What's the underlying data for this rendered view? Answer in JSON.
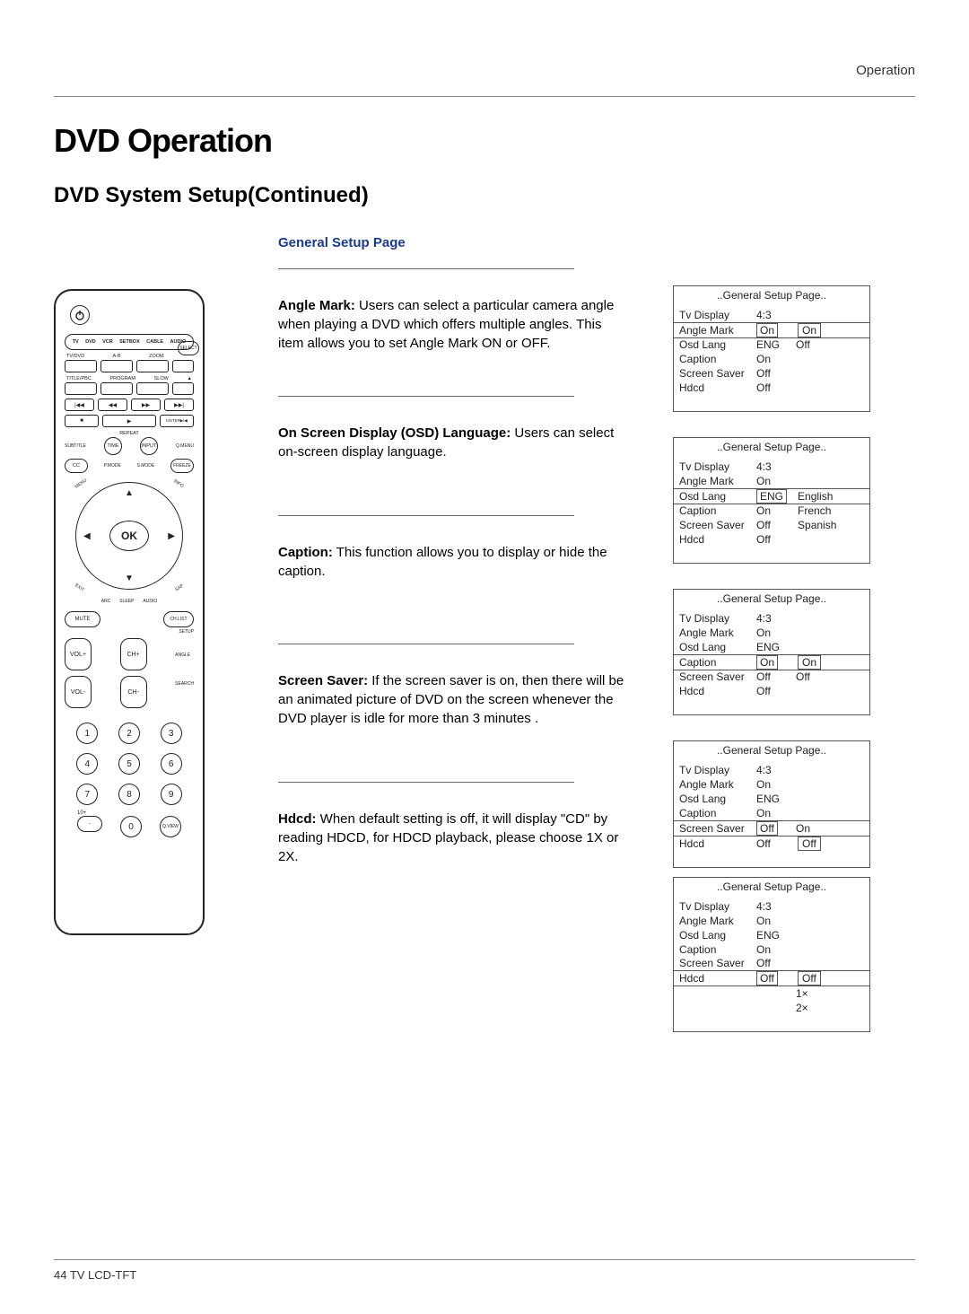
{
  "header": {
    "right": "Operation"
  },
  "title": "DVD Operation",
  "subtitle": "DVD System Setup(Continued)",
  "section_heading": "General Setup Page",
  "footer": "44   TV LCD-TFT",
  "sections": {
    "angle": {
      "label": "Angle Mark:",
      "text": "Users can select a particular camera angle when playing  a DVD which offers  multiple angles.\nThis item allows you to set Angle Mark ON or OFF."
    },
    "osdlang": {
      "label": "On  Screen  Display (OSD)  Language:",
      "text": "Users can select on-screen display  language."
    },
    "caption": {
      "label": "Caption:",
      "text": "This function allows you to display or hide the caption."
    },
    "saver": {
      "label": "Screen Saver:",
      "text": "If the screen saver is  on, then there will be an animated  picture of DVD on the screen whenever the DVD  player is idle for more than 3 minutes  ."
    },
    "hdcd": {
      "label": "Hdcd:",
      "text": "When default setting is off,  it will display \"CD\" by reading HDCD,  for HDCD playback, please choose 1X or  2X."
    }
  },
  "osd_common": {
    "title": "..General Setup Page.."
  },
  "osd1": {
    "rows": [
      [
        "Tv Display",
        "4:3"
      ],
      [
        "Angle Mark",
        "On"
      ],
      [
        "Osd   Lang",
        "ENG"
      ],
      [
        "Caption",
        "On"
      ],
      [
        "Screen Saver",
        "Off"
      ],
      [
        "Hdcd",
        "Off"
      ]
    ],
    "hl_row": 1,
    "opts": [
      "On",
      "Off"
    ],
    "dropdown_first_boxed": true
  },
  "osd2": {
    "rows": [
      [
        "Tv Display",
        "4:3"
      ],
      [
        "Angle Mark",
        "On"
      ],
      [
        "Osd   Lang",
        "ENG"
      ],
      [
        "Caption",
        "On"
      ],
      [
        "Screen Saver",
        "Off"
      ],
      [
        "Hdcd",
        "Off"
      ]
    ],
    "hl_row": 2,
    "opts": [
      "English",
      "French",
      "Spanish"
    ]
  },
  "osd3": {
    "rows": [
      [
        "Tv Display",
        "4:3"
      ],
      [
        "Angle Mark",
        "On"
      ],
      [
        "Osd   Lang",
        "ENG"
      ],
      [
        "Caption",
        "On"
      ],
      [
        "Screen Saver",
        "Off"
      ],
      [
        "Hdcd",
        "Off"
      ]
    ],
    "hl_row": 3,
    "opts": [
      "On",
      "Off"
    ],
    "dropdown_first_boxed": true
  },
  "osd4": {
    "rows": [
      [
        "Tv Display",
        "4:3"
      ],
      [
        "Angle Mark",
        "On"
      ],
      [
        "Osd Lang",
        "ENG"
      ],
      [
        "Caption",
        "On"
      ],
      [
        "Screen Saver",
        "Off"
      ],
      [
        "Hdcd",
        "Off"
      ]
    ],
    "hl_row": 4,
    "opts": [
      "On",
      "Off"
    ],
    "dropdown_second_boxed": true
  },
  "osd5": {
    "rows": [
      [
        "Tv Display",
        "4:3"
      ],
      [
        "Angle Mark",
        "On"
      ],
      [
        "Osd   Lang",
        "ENG"
      ],
      [
        "Caption",
        "On"
      ],
      [
        "Screen Saver",
        "Off"
      ],
      [
        "Hdcd",
        "Off"
      ]
    ],
    "hl_row": 5,
    "opts": [
      "Off",
      "1×",
      "2×"
    ],
    "dropdown_first_boxed": true
  },
  "remote": {
    "devices": [
      "TV",
      "DVD",
      "VCR",
      "SETBOX",
      "CABLE",
      "AUDIO"
    ],
    "row_lbl1": [
      "TV/DVD",
      "A-B",
      "ZOOM",
      ""
    ],
    "row_lbl2": [
      "TITLE/PBC",
      "PROGRAM",
      "SLOW",
      ""
    ],
    "row_lbl3": [
      "SUBTITLE",
      "",
      "",
      ""
    ],
    "nav_ok": "OK",
    "mute": "MUTE",
    "vol": [
      "VOL+",
      "VOL-"
    ],
    "ch": [
      "CH+",
      "CH-"
    ],
    "side_r": [
      "CH.LIST",
      "SETUP",
      "ANGLE",
      "SEARCH"
    ],
    "mid_round": [
      "TIME",
      "INPUT"
    ],
    "mid_round_r": [
      "Q.MENU",
      "FREEZE"
    ],
    "cc": "CC",
    "arc_lbls": [
      "P.MODE",
      "S.MODE"
    ],
    "diag": [
      "MENU",
      "INFO",
      "EXIT",
      "SAP",
      "ARC",
      "SLEEP",
      "AUDIO"
    ],
    "nums": [
      "1",
      "2",
      "3",
      "4",
      "5",
      "6",
      "7",
      "8",
      "9"
    ],
    "tenplus": "10+",
    "dash": "-",
    "zero": "0",
    "qview": "Q.VIEW",
    "select": "SELECT",
    "eject": "▲",
    "repeat": "REPEAT",
    "transport": [
      "|◀◀",
      "◀◀",
      "▶▶",
      "▶▶|",
      "■",
      "▶",
      "II/STEP▶/◀"
    ]
  }
}
